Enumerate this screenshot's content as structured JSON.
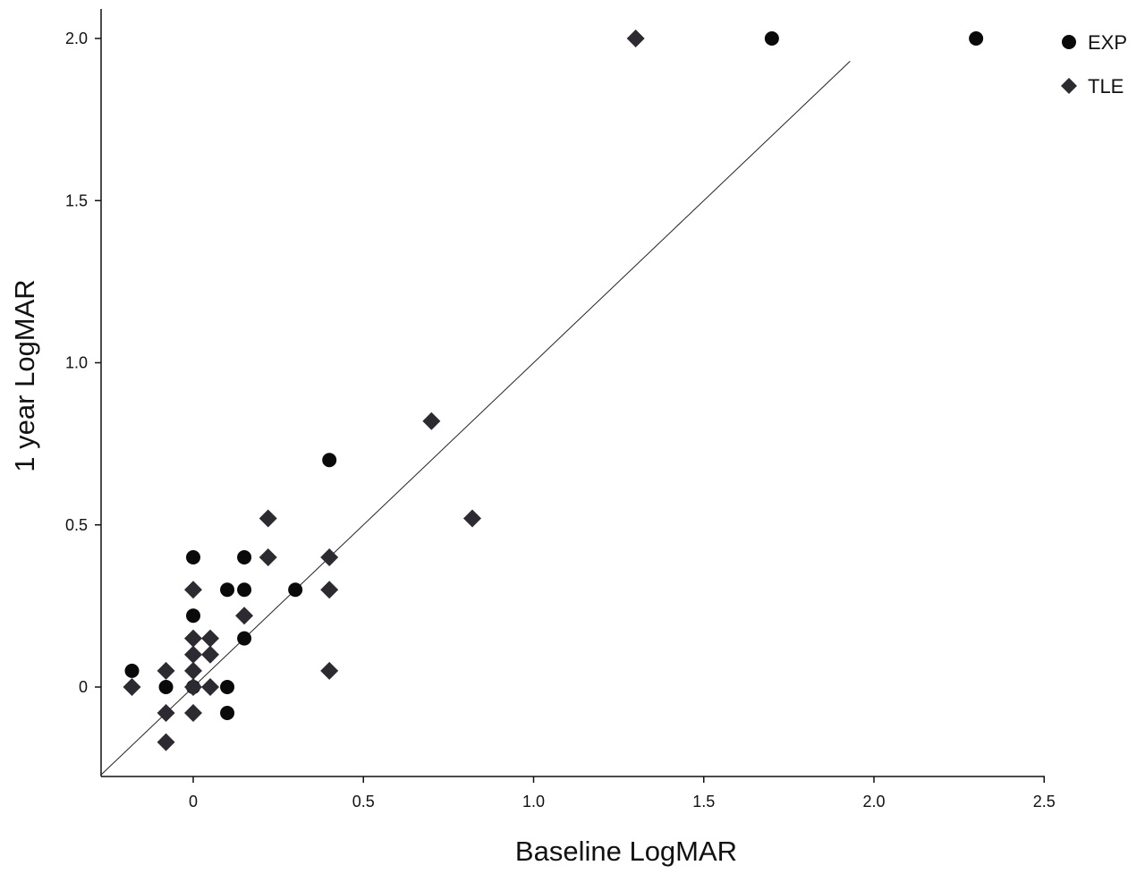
{
  "chart_data": {
    "type": "scatter",
    "xlabel": "Baseline LogMAR",
    "ylabel": "1 year LogMAR",
    "xlim": [
      -0.27,
      2.5
    ],
    "ylim": [
      -0.25,
      2.08
    ],
    "x_ticks": [
      {
        "value": 0,
        "label": "0"
      },
      {
        "value": 0.5,
        "label": "0.5"
      },
      {
        "value": 1.0,
        "label": "1.0"
      },
      {
        "value": 1.5,
        "label": "1.5"
      },
      {
        "value": 2.0,
        "label": "2.0"
      },
      {
        "value": 2.5,
        "label": "2.5"
      }
    ],
    "y_ticks": [
      {
        "value": 0,
        "label": "0"
      },
      {
        "value": 0.5,
        "label": "0.5"
      },
      {
        "value": 1.0,
        "label": "1.0"
      },
      {
        "value": 1.5,
        "label": "1.5"
      },
      {
        "value": 2.0,
        "label": "2.0"
      }
    ],
    "reference_line": {
      "type": "identity",
      "from": [
        -0.27,
        -0.27
      ],
      "to": [
        1.93,
        1.93
      ]
    },
    "legend": {
      "placement": "top-right"
    },
    "grid": false,
    "series": [
      {
        "name": "EXP",
        "marker": "circle",
        "color": "#0a0a0a",
        "points": [
          {
            "x": 1.7,
            "y": 2.0
          },
          {
            "x": 2.3,
            "y": 2.0
          },
          {
            "x": 0.4,
            "y": 0.7
          },
          {
            "x": 0.3,
            "y": 0.3
          },
          {
            "x": 0.0,
            "y": 0.4
          },
          {
            "x": 0.0,
            "y": 0.22
          },
          {
            "x": 0.1,
            "y": 0.3
          },
          {
            "x": 0.1,
            "y": 0.0
          },
          {
            "x": 0.1,
            "y": -0.08
          },
          {
            "x": 0.15,
            "y": 0.4
          },
          {
            "x": 0.15,
            "y": 0.3
          },
          {
            "x": 0.15,
            "y": 0.15
          },
          {
            "x": -0.18,
            "y": 0.05
          },
          {
            "x": -0.08,
            "y": 0.0
          },
          {
            "x": 0.0,
            "y": 0.0
          }
        ]
      },
      {
        "name": "TLE",
        "marker": "diamond",
        "color": "#2d2a32",
        "points": [
          {
            "x": 1.3,
            "y": 2.0
          },
          {
            "x": 0.7,
            "y": 0.82
          },
          {
            "x": 0.82,
            "y": 0.52
          },
          {
            "x": 0.22,
            "y": 0.52
          },
          {
            "x": 0.22,
            "y": 0.4
          },
          {
            "x": 0.4,
            "y": 0.4
          },
          {
            "x": 0.4,
            "y": 0.3
          },
          {
            "x": 0.4,
            "y": 0.05
          },
          {
            "x": 0.15,
            "y": 0.22
          },
          {
            "x": 0.0,
            "y": 0.3
          },
          {
            "x": 0.0,
            "y": 0.15
          },
          {
            "x": 0.05,
            "y": 0.15
          },
          {
            "x": 0.0,
            "y": 0.1
          },
          {
            "x": 0.05,
            "y": 0.1
          },
          {
            "x": 0.0,
            "y": 0.05
          },
          {
            "x": 0.0,
            "y": 0.0
          },
          {
            "x": 0.05,
            "y": 0.0
          },
          {
            "x": 0.0,
            "y": -0.08
          },
          {
            "x": -0.18,
            "y": 0.0
          },
          {
            "x": -0.08,
            "y": 0.05
          },
          {
            "x": -0.08,
            "y": -0.08
          },
          {
            "x": -0.08,
            "y": -0.17
          }
        ]
      }
    ]
  }
}
